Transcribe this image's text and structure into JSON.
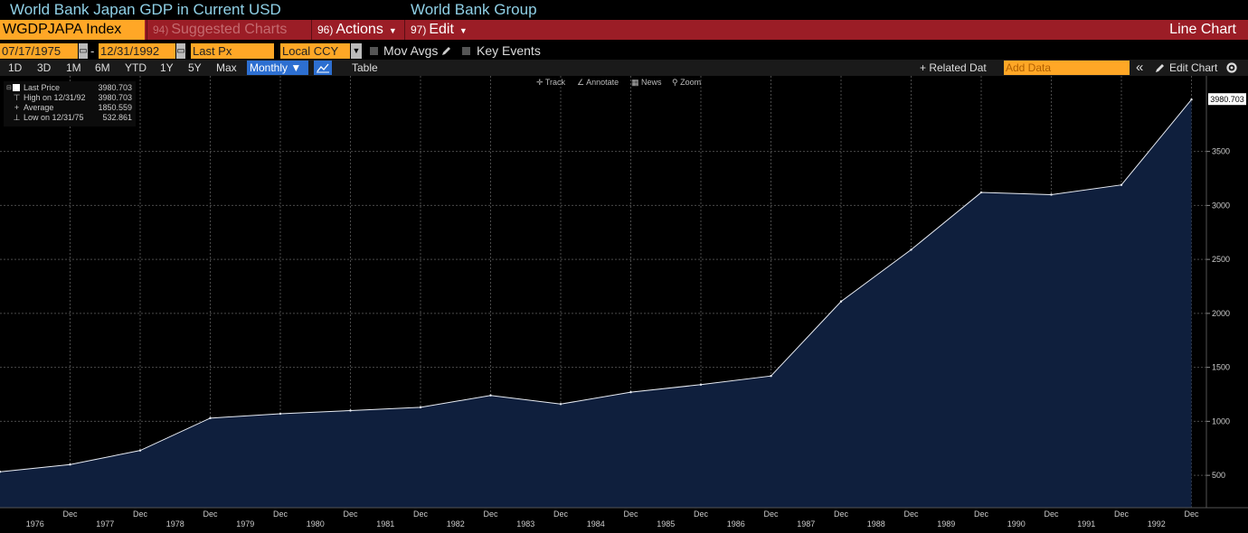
{
  "header": {
    "title": "World Bank Japan GDP in Current USD",
    "source": "World Bank Group"
  },
  "bar1": {
    "ticker": "WGDPJAPA Index",
    "suggested": {
      "num": "94)",
      "label": "Suggested Charts"
    },
    "actions": {
      "num": "96)",
      "label": "Actions"
    },
    "edit": {
      "num": "97)",
      "label": "Edit"
    },
    "chart_type": "Line Chart"
  },
  "bar2": {
    "start_date": "07/17/1975",
    "date_sep": "-",
    "end_date": "12/31/1992",
    "field": "Last Px",
    "currency": "Local CCY",
    "mov_avgs": "Mov Avgs",
    "key_events": "Key Events"
  },
  "bar3": {
    "ranges": [
      "1D",
      "3D",
      "1M",
      "6M",
      "YTD",
      "1Y",
      "5Y",
      "Max"
    ],
    "period": "Monthly ▼",
    "table": "Table",
    "related": "+ Related Dat",
    "add_data_placeholder": "Add Data",
    "collapse": "«",
    "edit_chart": "Edit Chart"
  },
  "chart_toolbar": {
    "track": "Track",
    "annotate": "Annotate",
    "news": "News",
    "zoom": "Zoom"
  },
  "legend": {
    "rows": [
      {
        "label": "Last Price",
        "value": "3980.703"
      },
      {
        "label": "High on 12/31/92",
        "value": "3980.703"
      },
      {
        "label": "Average",
        "value": "1850.559"
      },
      {
        "label": "Low on 12/31/75",
        "value": "532.861"
      }
    ]
  },
  "colors": {
    "area_fill": "#0f1f3d",
    "line": "#e8ecf4",
    "accent_orange": "#ffa726",
    "menu_red": "#9b1d26"
  },
  "chart_data": {
    "type": "area",
    "x": [
      "1975",
      "1976",
      "1977",
      "1978",
      "1979",
      "1980",
      "1981",
      "1982",
      "1983",
      "1984",
      "1985",
      "1986",
      "1987",
      "1988",
      "1989",
      "1990",
      "1991",
      "1992"
    ],
    "values": [
      532.861,
      600,
      730,
      1030,
      1070,
      1100,
      1130,
      1240,
      1160,
      1270,
      1340,
      1420,
      2110,
      2590,
      3120,
      3100,
      3190,
      3980.703
    ],
    "ylim": [
      200,
      4200
    ],
    "yticks": [
      500,
      1000,
      1500,
      2000,
      2500,
      3000,
      3500
    ],
    "x_tick_label": "Dec",
    "x_period_labels": [
      "1976",
      "1977",
      "1978",
      "1979",
      "1980",
      "1981",
      "1982",
      "1983",
      "1984",
      "1985",
      "1986",
      "1987",
      "1988",
      "1989",
      "1990",
      "1991",
      "1992"
    ],
    "last_value_label": "3980.703",
    "grid": true
  }
}
